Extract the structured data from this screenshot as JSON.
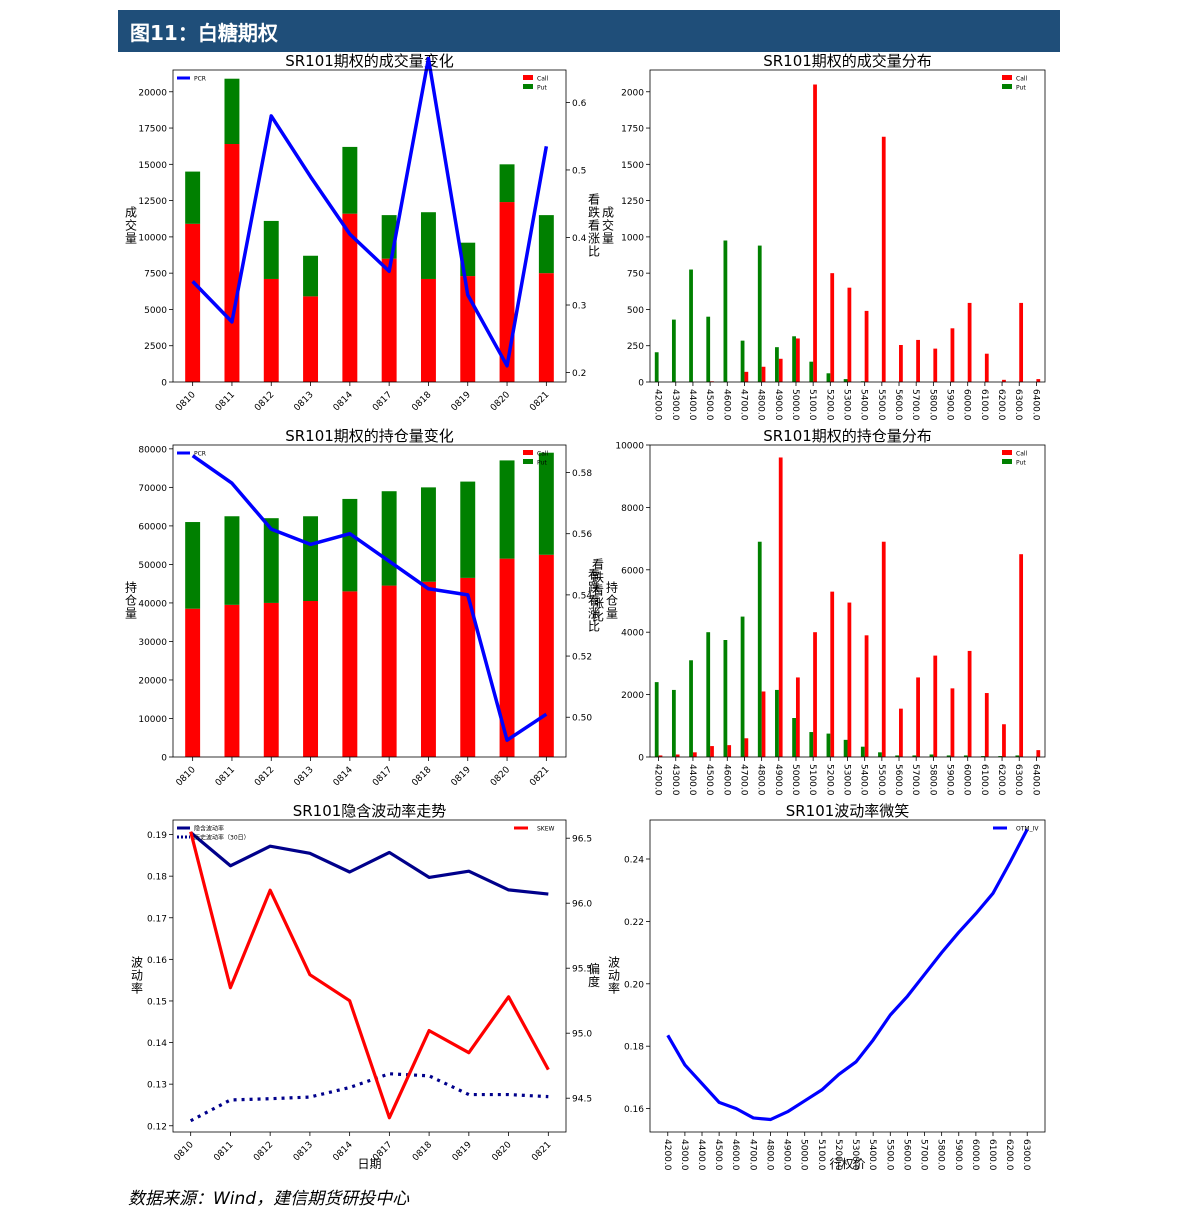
{
  "header": {
    "title": "图11：白糖期权"
  },
  "source": "数据来源：Wind，建信期货研投中心",
  "colors": {
    "header_bg": "#1f4e79",
    "call": "#ff0000",
    "put": "#008000",
    "pcr": "#0000ff",
    "iv": "#00008b",
    "skew": "#ff0000"
  },
  "chart_data": [
    {
      "id": "volume-change",
      "type": "bar",
      "title": "SR101期权的成交量变化",
      "ylabel": "成交量",
      "y2label": "看跌看涨比",
      "categories": [
        "0810",
        "0811",
        "0812",
        "0813",
        "0814",
        "0817",
        "0818",
        "0819",
        "0820",
        "0821"
      ],
      "ylim": [
        0,
        21500
      ],
      "yticks": [
        0,
        2500,
        5000,
        7500,
        10000,
        12500,
        15000,
        17500,
        20000
      ],
      "y2lim": [
        0.186,
        0.648
      ],
      "y2ticks": [
        0.2,
        0.3,
        0.4,
        0.5,
        0.6
      ],
      "series": [
        {
          "name": "Call",
          "values": [
            10900,
            16400,
            7100,
            5900,
            11600,
            8500,
            7100,
            7300,
            12400,
            7500
          ]
        },
        {
          "name": "Put",
          "values": [
            3600,
            4500,
            4000,
            2800,
            4600,
            3000,
            4600,
            2300,
            2600,
            4000
          ]
        }
      ],
      "pcr": {
        "name": "PCR",
        "values": [
          0.335,
          0.275,
          0.58,
          0.49,
          0.405,
          0.35,
          0.665,
          0.315,
          0.21,
          0.535
        ]
      },
      "legend_left": [
        "PCR"
      ],
      "legend_right": [
        "Call",
        "Put"
      ]
    },
    {
      "id": "volume-dist",
      "type": "bar",
      "title": "SR101期权的成交量分布",
      "ylabel": "成交量",
      "categories": [
        "4200.0",
        "4300.0",
        "4400.0",
        "4500.0",
        "4600.0",
        "4700.0",
        "4800.0",
        "4900.0",
        "5000.0",
        "5100.0",
        "5200.0",
        "5300.0",
        "5400.0",
        "5500.0",
        "5600.0",
        "5700.0",
        "5800.0",
        "5900.0",
        "6000.0",
        "6100.0",
        "6200.0",
        "6300.0",
        "6400.0"
      ],
      "ylim": [
        0,
        2150
      ],
      "yticks": [
        0,
        250,
        500,
        750,
        1000,
        1250,
        1500,
        1750,
        2000
      ],
      "series": [
        {
          "name": "Call",
          "values": [
            0,
            0,
            0,
            5,
            0,
            70,
            105,
            160,
            300,
            2050,
            750,
            650,
            490,
            1690,
            255,
            290,
            230,
            370,
            545,
            195,
            15,
            545,
            20
          ]
        },
        {
          "name": "Put",
          "values": [
            205,
            430,
            775,
            450,
            975,
            285,
            940,
            240,
            315,
            140,
            60,
            20,
            5,
            0,
            0,
            0,
            0,
            0,
            0,
            0,
            0,
            0,
            0
          ]
        }
      ],
      "legend_right": [
        "Call",
        "Put"
      ]
    },
    {
      "id": "oi-change",
      "type": "bar",
      "title": "SR101期权的持仓量变化",
      "ylabel": "持仓量",
      "y2label": "看跌看涨比",
      "categories": [
        "0810",
        "0811",
        "0812",
        "0813",
        "0814",
        "0817",
        "0818",
        "0819",
        "0820",
        "0821"
      ],
      "ylim": [
        0,
        81000
      ],
      "yticks": [
        0,
        10000,
        20000,
        30000,
        40000,
        50000,
        60000,
        70000,
        80000
      ],
      "y2lim": [
        0.487,
        0.589
      ],
      "y2ticks": [
        0.5,
        0.52,
        0.54,
        0.56,
        0.58
      ],
      "series": [
        {
          "name": "Call",
          "values": [
            38500,
            39500,
            40000,
            40500,
            43000,
            44500,
            45500,
            46500,
            51500,
            52500
          ]
        },
        {
          "name": "Put",
          "values": [
            22500,
            23000,
            22000,
            22000,
            24000,
            24500,
            24500,
            25000,
            25500,
            26500
          ]
        }
      ],
      "pcr": {
        "name": "PCR",
        "values": [
          0.5855,
          0.5765,
          0.5615,
          0.5565,
          0.56,
          0.551,
          0.542,
          0.54,
          0.4925,
          0.501
        ]
      },
      "legend_left": [
        "PCR"
      ],
      "legend_right": [
        "Call",
        "Put"
      ]
    },
    {
      "id": "oi-dist",
      "type": "bar",
      "title": "SR101期权的持仓量分布",
      "ylabel": "看跌看涨比",
      "y2label": "持仓量",
      "categories": [
        "4200.0",
        "4300.0",
        "4400.0",
        "4500.0",
        "4600.0",
        "4700.0",
        "4800.0",
        "4900.0",
        "5000.0",
        "5100.0",
        "5200.0",
        "5300.0",
        "5400.0",
        "5500.0",
        "5600.0",
        "5700.0",
        "5800.0",
        "5900.0",
        "6000.0",
        "6100.0",
        "6200.0",
        "6300.0",
        "6400.0"
      ],
      "ylim": [
        0,
        10000
      ],
      "yticks": [
        0,
        2000,
        4000,
        6000,
        8000,
        10000
      ],
      "series": [
        {
          "name": "Call",
          "values": [
            50,
            80,
            150,
            350,
            380,
            600,
            2100,
            9600,
            2550,
            4000,
            5300,
            4950,
            3900,
            6900,
            1550,
            2550,
            3250,
            2200,
            3400,
            2050,
            1050,
            6500,
            220
          ]
        },
        {
          "name": "Put",
          "values": [
            2400,
            2150,
            3100,
            4000,
            3750,
            4500,
            6900,
            2150,
            1250,
            800,
            750,
            550,
            330,
            150,
            50,
            50,
            80,
            50,
            50,
            30,
            30,
            50,
            0
          ]
        }
      ],
      "legend_right": [
        "Call",
        "Put"
      ]
    },
    {
      "id": "iv-trend",
      "type": "line",
      "title": "SR101隐含波动率走势",
      "xlabel": "日期",
      "ylabel": "波动率",
      "y2label": "偏度",
      "categories": [
        "0810",
        "0811",
        "0812",
        "0813",
        "0814",
        "0817",
        "0818",
        "0819",
        "0820",
        "0821"
      ],
      "ylim": [
        0.1185,
        0.1935
      ],
      "yticks": [
        0.12,
        0.13,
        0.14,
        0.15,
        0.16,
        0.17,
        0.18,
        0.19
      ],
      "y2lim": [
        94.24,
        96.64
      ],
      "y2ticks": [
        94.5,
        95.0,
        95.5,
        96.0,
        96.5
      ],
      "series": [
        {
          "name": "隐含波动率",
          "axis": "left",
          "values": [
            0.1905,
            0.1825,
            0.1872,
            0.1855,
            0.181,
            0.1857,
            0.1797,
            0.1812,
            0.1767,
            0.1757
          ]
        },
        {
          "name": "历史波动率（30日）",
          "axis": "left",
          "values": [
            0.1212,
            0.1262,
            0.1265,
            0.1269,
            0.1292,
            0.1325,
            0.132,
            0.1275,
            0.1275,
            0.127
          ]
        },
        {
          "name": "SKEW",
          "axis": "right",
          "values": [
            96.55,
            95.35,
            96.1,
            95.45,
            95.25,
            94.35,
            95.02,
            94.85,
            95.28,
            94.72
          ]
        }
      ],
      "legend_left": [
        "隐含波动率",
        "历史波动率（30日）"
      ],
      "legend_right": [
        "SKEW"
      ]
    },
    {
      "id": "iv-smile",
      "type": "line",
      "title": "SR101波动率微笑",
      "xlabel": "行权价",
      "ylabel": "波动率",
      "categories": [
        "4200.0",
        "4300.0",
        "4400.0",
        "4500.0",
        "4600.0",
        "4700.0",
        "4800.0",
        "4900.0",
        "5000.0",
        "5100.0",
        "5200.0",
        "5300.0",
        "5400.0",
        "5500.0",
        "5600.0",
        "5700.0",
        "5800.0",
        "5900.0",
        "6000.0",
        "6100.0",
        "6200.0",
        "6300.0"
      ],
      "ylim": [
        0.1525,
        0.2525
      ],
      "yticks": [
        0.16,
        0.18,
        0.2,
        0.22,
        0.24
      ],
      "series": [
        {
          "name": "OTM_IV",
          "values": [
            0.1835,
            0.174,
            0.168,
            0.162,
            0.16,
            0.157,
            0.1565,
            0.159,
            0.1625,
            0.166,
            0.171,
            0.175,
            0.182,
            0.19,
            0.196,
            0.203,
            0.21,
            0.2165,
            0.2225,
            0.229,
            0.239,
            0.2495
          ]
        }
      ],
      "legend_right": [
        "OTM_IV"
      ]
    }
  ]
}
